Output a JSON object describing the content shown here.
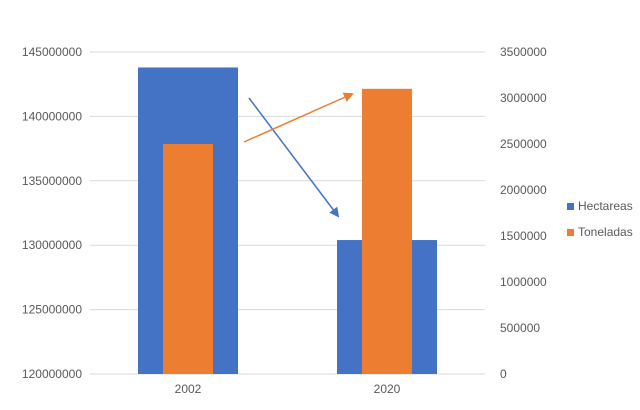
{
  "chart_data": {
    "type": "bar",
    "categories": [
      "2002",
      "2020"
    ],
    "series": [
      {
        "name": "Hectareas",
        "axis": "left",
        "values": [
          143800000,
          130400000
        ],
        "color": "#4472C4"
      },
      {
        "name": "Toneladas",
        "axis": "right",
        "values": [
          2500000,
          3100000
        ],
        "color": "#ED7D31"
      }
    ],
    "y_left": {
      "ylim": [
        120000000,
        145000000
      ],
      "ticks": [
        120000000,
        125000000,
        130000000,
        135000000,
        140000000,
        145000000
      ]
    },
    "y_right": {
      "ylim": [
        0,
        3500000
      ],
      "ticks": [
        0,
        500000,
        1000000,
        1500000,
        2000000,
        2500000,
        3000000,
        3500000
      ]
    },
    "grid": true,
    "legend": "right",
    "arrows": [
      {
        "series": "Hectareas",
        "direction": "decrease",
        "color": "#4472C4"
      },
      {
        "series": "Toneladas",
        "direction": "increase",
        "color": "#ED7D31"
      }
    ]
  }
}
